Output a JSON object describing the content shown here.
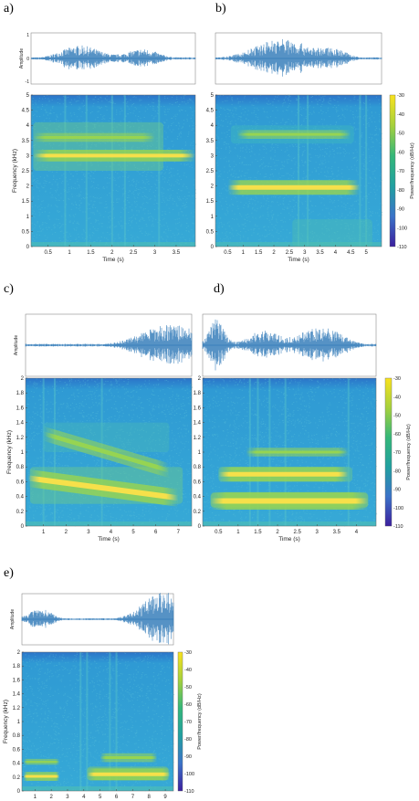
{
  "panels": [
    {
      "label": "a)",
      "amplitude_ylabel": "Amplitude",
      "amplitude_yticks": [
        "1",
        "0",
        "-1"
      ],
      "spectrogram": {
        "ylabel": "Frequency (kHz)",
        "xlabel": "Time (s)",
        "yticks": [
          "0",
          "0.5",
          "1",
          "1.5",
          "2",
          "2.5",
          "3",
          "3.5",
          "4",
          "4.5",
          "5"
        ],
        "xticks": [
          "0.5",
          "1",
          "1.5",
          "2",
          "2.5",
          "3",
          "3.5"
        ],
        "ylim": [
          0,
          5
        ],
        "xlim": [
          0.1,
          3.95
        ]
      }
    },
    {
      "label": "b)",
      "spectrogram": {
        "xlabel": "Time (s)",
        "yticks": [
          "0",
          "0.5",
          "1",
          "1.5",
          "2",
          "2.5",
          "3",
          "3.5",
          "4",
          "4.5",
          "5"
        ],
        "xticks": [
          "0.5",
          "1",
          "1.5",
          "2",
          "2.5",
          "3",
          "3.5",
          "4",
          "4.5",
          "5"
        ],
        "ylim": [
          0,
          5
        ],
        "xlim": [
          0.1,
          5.5
        ]
      },
      "colorbar": {
        "label": "Power/frequency (dB/Hz)",
        "ticks": [
          "-30",
          "-40",
          "-50",
          "-60",
          "-70",
          "-80",
          "-90",
          "-100",
          "-110"
        ]
      }
    },
    {
      "label": "c)",
      "amplitude_ylabel": "Amplitude",
      "spectrogram": {
        "ylabel": "Frequency (kHz)",
        "xlabel": "Time (s)",
        "yticks": [
          "0",
          "0.2",
          "0.4",
          "0.6",
          "0.8",
          "1",
          "1.2",
          "1.4",
          "1.6",
          "1.8",
          "2"
        ],
        "xticks": [
          "1",
          "2",
          "3",
          "4",
          "5",
          "6",
          "7"
        ],
        "ylim": [
          0,
          2
        ],
        "xlim": [
          0.2,
          7.6
        ]
      }
    },
    {
      "label": "d)",
      "spectrogram": {
        "xlabel": "Time (s)",
        "yticks": [
          "0",
          "0.2",
          "0.4",
          "0.6",
          "0.8",
          "1",
          "1.2",
          "1.4",
          "1.6",
          "1.8",
          "2"
        ],
        "xticks": [
          "0.5",
          "1",
          "1.5",
          "2",
          "2.5",
          "3",
          "3.5",
          "4"
        ],
        "ylim": [
          0,
          2
        ],
        "xlim": [
          0.1,
          4.5
        ]
      },
      "colorbar": {
        "label": "Power/frequency (dB/Hz)",
        "ticks": [
          "-30",
          "-40",
          "-50",
          "-60",
          "-70",
          "-80",
          "-90",
          "-100",
          "-110"
        ]
      }
    },
    {
      "label": "e)",
      "amplitude_ylabel": "Amplitude",
      "spectrogram": {
        "ylabel": "Frequency (kHz)",
        "xlabel": "Time (s)",
        "yticks": [
          "0",
          "0.2",
          "0.4",
          "0.6",
          "0.8",
          "1",
          "1.2",
          "1.4",
          "1.6",
          "1.8",
          "2"
        ],
        "xticks": [
          "1",
          "2",
          "3",
          "4",
          "5",
          "6",
          "7",
          "8",
          "9"
        ],
        "ylim": [
          0,
          2
        ],
        "xlim": [
          0.2,
          9.5
        ]
      },
      "colorbar": {
        "label": "Power/frequency (dB/Hz)",
        "ticks": [
          "-30",
          "-40",
          "-50",
          "-60",
          "-70",
          "-80",
          "-90",
          "-100",
          "-110"
        ]
      }
    }
  ],
  "chart_data": [
    {
      "type": "line",
      "panel": "a",
      "subplot": "waveform",
      "ylabel": "Amplitude",
      "ylim": [
        -1,
        1
      ]
    },
    {
      "type": "heatmap",
      "panel": "a",
      "subplot": "spectrogram",
      "xlabel": "Time (s)",
      "ylabel": "Frequency (kHz)",
      "xlim": [
        0.1,
        3.95
      ],
      "ylim": [
        0,
        5
      ],
      "bands": [
        {
          "t_start": 0.15,
          "t_end": 3.95,
          "freq_khz": 3.0
        },
        {
          "t_start": 0.15,
          "t_end": 3.0,
          "freq_khz": 3.6
        }
      ]
    },
    {
      "type": "line",
      "panel": "b",
      "subplot": "waveform",
      "ylim": [
        -1,
        1
      ]
    },
    {
      "type": "heatmap",
      "panel": "b",
      "subplot": "spectrogram",
      "xlabel": "Time (s)",
      "xlim": [
        0.1,
        5.5
      ],
      "ylim": [
        0,
        5
      ],
      "colorbar_range_db": [
        -110,
        -30
      ],
      "bands": [
        {
          "t_start": 0.5,
          "t_end": 4.8,
          "freq_khz": 1.95
        },
        {
          "t_start": 0.8,
          "t_end": 4.5,
          "freq_khz": 3.7
        }
      ]
    },
    {
      "type": "line",
      "panel": "c",
      "subplot": "waveform",
      "ylabel": "Amplitude",
      "ylim": [
        -1,
        1
      ]
    },
    {
      "type": "heatmap",
      "panel": "c",
      "subplot": "spectrogram",
      "xlabel": "Time (s)",
      "ylabel": "Frequency (kHz)",
      "xlim": [
        0.2,
        7.6
      ],
      "ylim": [
        0,
        2
      ],
      "bands": [
        {
          "t_start": 0.3,
          "t_end": 7.0,
          "freq_start_khz": 0.65,
          "freq_end_khz": 0.38
        },
        {
          "t_start": 1.0,
          "t_end": 6.6,
          "freq_start_khz": 1.25,
          "freq_end_khz": 0.75
        }
      ]
    },
    {
      "type": "line",
      "panel": "d",
      "subplot": "waveform",
      "ylim": [
        -1,
        1
      ]
    },
    {
      "type": "heatmap",
      "panel": "d",
      "subplot": "spectrogram",
      "xlabel": "Time (s)",
      "xlim": [
        0.1,
        4.5
      ],
      "ylim": [
        0,
        2
      ],
      "colorbar_range_db": [
        -110,
        -30
      ],
      "bands": [
        {
          "t_start": 0.3,
          "t_end": 4.3,
          "freq_khz": 0.34
        },
        {
          "t_start": 0.5,
          "t_end": 3.8,
          "freq_khz": 0.7
        },
        {
          "t_start": 1.2,
          "t_end": 3.8,
          "freq_khz": 1.0
        }
      ]
    },
    {
      "type": "line",
      "panel": "e",
      "subplot": "waveform",
      "ylabel": "Amplitude",
      "ylim": [
        -1,
        1
      ]
    },
    {
      "type": "heatmap",
      "panel": "e",
      "subplot": "spectrogram",
      "xlabel": "Time (s)",
      "ylabel": "Frequency (kHz)",
      "xlim": [
        0.2,
        9.5
      ],
      "ylim": [
        0,
        2
      ],
      "colorbar_range_db": [
        -110,
        -30
      ],
      "bands": [
        {
          "t_start": 0.3,
          "t_end": 2.5,
          "freq_khz": 0.21
        },
        {
          "t_start": 0.3,
          "t_end": 2.5,
          "freq_khz": 0.42
        },
        {
          "t_start": 4.2,
          "t_end": 9.3,
          "freq_khz": 0.24
        },
        {
          "t_start": 5.0,
          "t_end": 8.5,
          "freq_khz": 0.48
        }
      ]
    }
  ],
  "colors": {
    "background": "#2f9ad4",
    "band": "#f4d03f",
    "waveform": "#1f6fb2",
    "axes": "#555555"
  }
}
